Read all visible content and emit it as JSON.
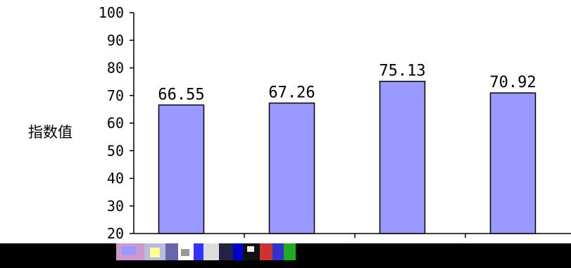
{
  "chart_data": {
    "type": "bar",
    "categories": [
      "",
      "",
      "",
      ""
    ],
    "values": [
      66.55,
      67.26,
      75.13,
      70.92
    ],
    "data_labels": [
      "66.55",
      "67.26",
      "75.13",
      "70.92"
    ],
    "ylabel": "指数值",
    "ylim": [
      20,
      100
    ],
    "yticks": [
      20,
      30,
      40,
      50,
      60,
      70,
      80,
      90,
      100
    ],
    "grid": false,
    "legend": "none",
    "colors": {
      "bar_fill": "#9999ff",
      "bar_stroke": "#000000",
      "axis": "#000000"
    }
  }
}
